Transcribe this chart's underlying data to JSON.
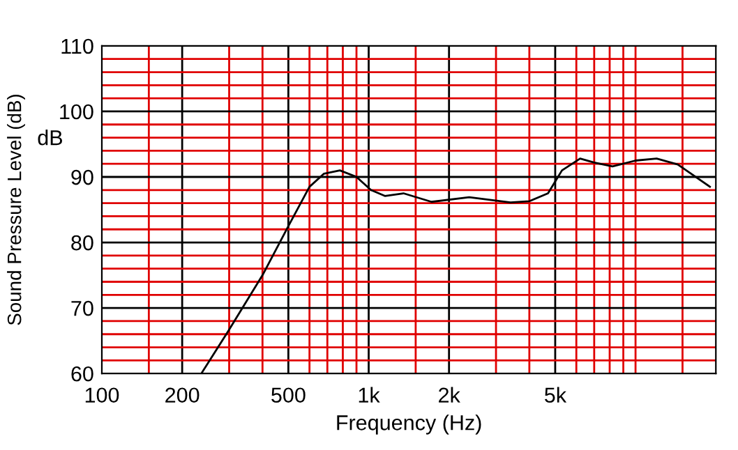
{
  "chart_data": {
    "type": "line",
    "xlabel": "Frequency (Hz)",
    "ylabel": "Sound Pressure Level (dB)",
    "annotations": [
      "dB"
    ],
    "log": "x",
    "grid": true,
    "marker": "none",
    "line_style": "solid",
    "xlim": [
      100,
      20000
    ],
    "ylim": [
      60,
      110
    ],
    "xticks": [
      100,
      {
        "value": 150,
        "label": null
      },
      200,
      {
        "value": 300,
        "label": null
      },
      {
        "value": 400,
        "label": null
      },
      500,
      {
        "value": 600,
        "label": null
      },
      {
        "value": 700,
        "label": null
      },
      {
        "value": 800,
        "label": null
      },
      {
        "value": 900,
        "label": null
      },
      {
        "value": 1000,
        "label": "1k"
      },
      {
        "value": 1500,
        "label": null
      },
      {
        "value": 2000,
        "label": "2k"
      },
      {
        "value": 3000,
        "label": null
      },
      {
        "value": 4000,
        "label": null
      },
      {
        "value": 5000,
        "label": "5k"
      },
      {
        "value": 6000,
        "label": null
      },
      {
        "value": 7000,
        "label": null
      },
      {
        "value": 8000,
        "label": null
      },
      {
        "value": 9000,
        "label": null
      },
      {
        "value": 10000,
        "label": null
      },
      {
        "value": 15000,
        "label": null
      }
    ],
    "yticks": [
      60,
      {
        "value": 62,
        "label": null
      },
      {
        "value": 64,
        "label": null
      },
      {
        "value": 66,
        "label": null
      },
      {
        "value": 68,
        "label": null
      },
      70,
      {
        "value": 72,
        "label": null
      },
      {
        "value": 74,
        "label": null
      },
      {
        "value": 76,
        "label": null
      },
      {
        "value": 78,
        "label": null
      },
      80,
      {
        "value": 82,
        "label": null
      },
      {
        "value": 84,
        "label": null
      },
      {
        "value": 86,
        "label": null
      },
      {
        "value": 88,
        "label": null
      },
      90,
      {
        "value": 92,
        "label": null
      },
      {
        "value": 94,
        "label": null
      },
      {
        "value": 96,
        "label": null
      },
      {
        "value": 98,
        "label": null
      },
      100,
      {
        "value": 102,
        "label": null
      },
      {
        "value": 104,
        "label": null
      },
      {
        "value": 106,
        "label": null
      },
      {
        "value": 108,
        "label": null
      },
      110
    ],
    "series": [
      {
        "color": "#000000",
        "x": [
          236,
          298,
          400,
          500,
          600,
          680,
          780,
          900,
          1020,
          1150,
          1350,
          1720,
          2380,
          3400,
          4000,
          4700,
          5300,
          6200,
          7000,
          8200,
          10000,
          12000,
          14400,
          19000
        ],
        "values": [
          60,
          66.5,
          75,
          82.5,
          88.5,
          90.5,
          91,
          90,
          88,
          87.1,
          87.5,
          86.2,
          86.9,
          86.1,
          86.3,
          87.5,
          91,
          92.8,
          92.2,
          91.6,
          92.5,
          92.8,
          91.9,
          88.5
        ]
      }
    ]
  }
}
